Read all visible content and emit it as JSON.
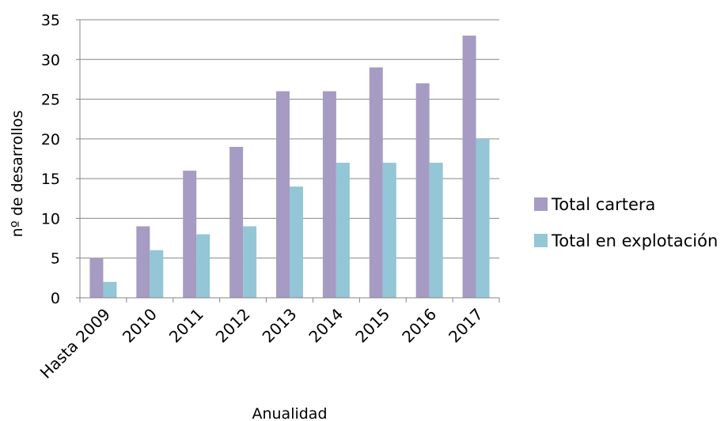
{
  "chart_data": {
    "type": "bar",
    "categories": [
      "Hasta 2009",
      "2010",
      "2011",
      "2012",
      "2013",
      "2014",
      "2015",
      "2016",
      "2017"
    ],
    "series": [
      {
        "name": "Total cartera",
        "values": [
          5,
          9,
          16,
          19,
          26,
          26,
          29,
          27,
          33
        ],
        "color": "#a59bc3"
      },
      {
        "name": "Total en explotación",
        "values": [
          2,
          6,
          8,
          9,
          14,
          17,
          17,
          17,
          20
        ],
        "color": "#93c6d6"
      }
    ],
    "xlabel": "Anualidad",
    "ylabel": "nº de desarrollos",
    "ylim": [
      0,
      35
    ],
    "yticks": [
      0,
      5,
      10,
      15,
      20,
      25,
      30,
      35
    ],
    "grid": true,
    "legend_position": "right"
  }
}
